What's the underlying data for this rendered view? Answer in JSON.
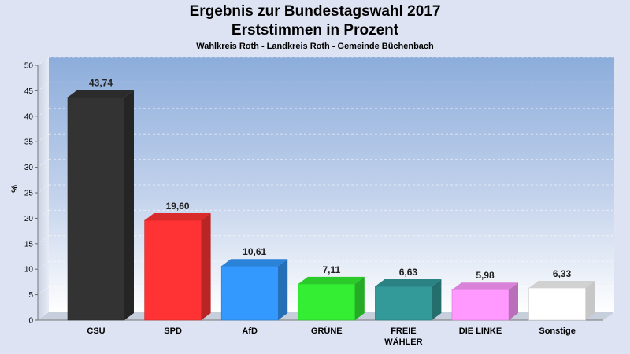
{
  "chart_data": {
    "type": "bar",
    "title": "Ergebnis zur Bundestagswahl 2017",
    "title_line2": "Erststimmen in Prozent",
    "subtitle": "Wahlkreis Roth - Landkreis Roth - Gemeinde Büchenbach",
    "ylabel": "%",
    "ylim": [
      0,
      50
    ],
    "yticks": [
      0,
      5,
      10,
      15,
      20,
      25,
      30,
      35,
      40,
      45,
      50
    ],
    "grid": true,
    "categories": [
      "CSU",
      "SPD",
      "AfD",
      "GRÜNE",
      "FREIE WÄHLER",
      "DIE LINKE",
      "Sonstige"
    ],
    "category_lines": [
      [
        "CSU"
      ],
      [
        "SPD"
      ],
      [
        "AfD"
      ],
      [
        "GRÜNE"
      ],
      [
        "FREIE",
        "WÄHLER"
      ],
      [
        "DIE LINKE"
      ],
      [
        "Sonstige"
      ]
    ],
    "values": [
      43.74,
      19.6,
      10.61,
      7.11,
      6.63,
      5.98,
      6.33
    ],
    "value_labels": [
      "43,74",
      "19,60",
      "10,61",
      "7,11",
      "6,63",
      "5,98",
      "6,33"
    ],
    "colors": [
      "#333333",
      "#ff3333",
      "#3399ff",
      "#33ee33",
      "#339999",
      "#ff99ff",
      "#ffffff"
    ]
  }
}
